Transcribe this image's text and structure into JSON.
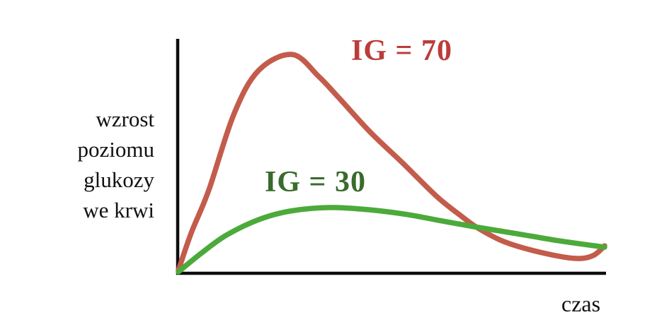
{
  "figure": {
    "background": "#ffffff"
  },
  "labels": {
    "y_axis": "wzrost\npoziomu\nglukozy\nwe krwi",
    "x_axis": "czas",
    "high_gi": "IG = 70",
    "low_gi": "IG = 30"
  },
  "colors": {
    "axis": "#0d0d0d",
    "high_gi_curve": "#c35c4b",
    "high_gi_text": "#bc3c3a",
    "low_gi_curve": "#4caa3a",
    "low_gi_text": "#3a6b2b"
  },
  "chart_data": {
    "type": "line",
    "title": "",
    "xlabel": "czas",
    "ylabel": "wzrost poziomu glukozy we krwi",
    "axes_style": "qualitative axes without ticks, numbers or grid",
    "legend_position": "inline text labels next to curves",
    "x_range_note": "relative time 0-100 (no units shown)",
    "y_range_note": "relative glucose rise 0-100 (no units shown)",
    "xlim": [
      0,
      100
    ],
    "ylim": [
      0,
      100
    ],
    "series": [
      {
        "name": "IG = 70",
        "color": "#c35c4b",
        "label_color": "#bc3c3a",
        "x": [
          0,
          3.0,
          7.1,
          13.0,
          18.8,
          26.7,
          32.9,
          37.9,
          45.0,
          52.8,
          60.6,
          66.4,
          70.3,
          76.4,
          84.7,
          93.0,
          97.3,
          100
        ],
        "y": [
          1.2,
          17.3,
          35.5,
          68.2,
          87.0,
          93.9,
          84.5,
          74.8,
          60.6,
          47.0,
          33.0,
          24.5,
          19.4,
          13.6,
          9.1,
          6.4,
          7.6,
          11.8
        ]
      },
      {
        "name": "IG = 30",
        "color": "#4caa3a",
        "label_color": "#3a6b2b",
        "x": [
          0,
          5.5,
          11.3,
          18.8,
          26.2,
          35.4,
          44.5,
          53.7,
          62.0,
          70.3,
          79.4,
          89.4,
          100
        ],
        "y": [
          0.6,
          8.8,
          16.4,
          23.0,
          26.7,
          28.2,
          27.3,
          25.2,
          22.4,
          19.7,
          17.0,
          13.9,
          11.2
        ]
      }
    ]
  }
}
